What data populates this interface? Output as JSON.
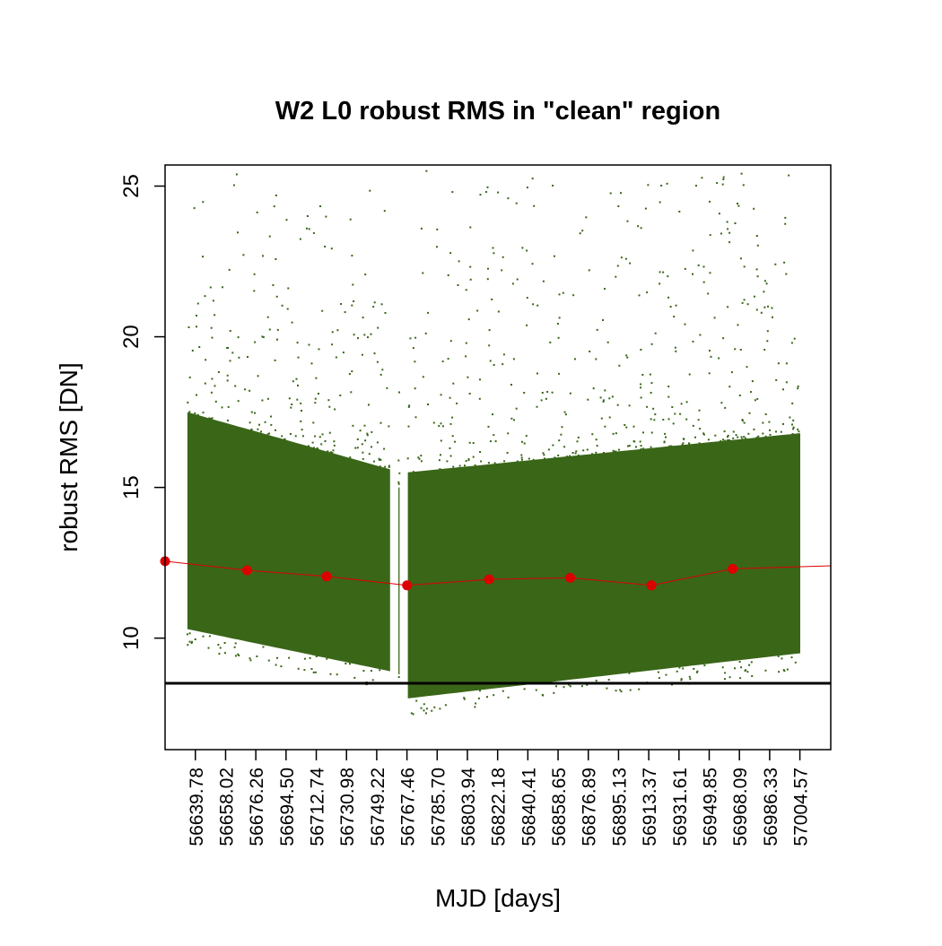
{
  "chart_data": {
    "type": "scatter",
    "title": "W2 L0 robust RMS in \"clean\" region",
    "xlabel": "MJD [days]",
    "ylabel": "robust RMS [DN]",
    "xlim": [
      56621.5,
      57023.2
    ],
    "ylim": [
      6.3,
      25.7
    ],
    "grid": false,
    "yticks": [
      10,
      15,
      20,
      25
    ],
    "xticks": [
      56639.78,
      56658.02,
      56676.26,
      56694.5,
      56712.74,
      56730.98,
      56749.22,
      56767.46,
      56785.7,
      56803.94,
      56822.18,
      56840.41,
      56858.65,
      56876.89,
      56895.13,
      56913.37,
      56931.61,
      56949.85,
      56968.09,
      56986.33,
      57004.57
    ],
    "xtick_labels": [
      "56639.78",
      "56658.02",
      "56676.26",
      "56694.50",
      "56712.74",
      "56730.98",
      "56749.22",
      "56767.46",
      "56785.70",
      "56803.94",
      "56822.18",
      "56840.41",
      "56858.65",
      "56876.89",
      "56895.13",
      "56913.37",
      "56931.61",
      "56949.85",
      "56968.09",
      "56986.33",
      "57004.57"
    ],
    "scatter_series": {
      "color": "#3a6618",
      "segments": [
        {
          "x_range": [
            56635.0,
            56757.3
          ],
          "band_low": [
            10.3,
            8.9
          ],
          "band_high": [
            17.5,
            15.6
          ]
        },
        {
          "x_range": [
            56762.3,
            56763.0
          ],
          "band_low": [
            8.8,
            8.8
          ],
          "band_high": [
            15.0,
            15.0
          ]
        },
        {
          "x_range": [
            56768.0,
            57004.8
          ],
          "band_low": [
            8.0,
            9.5
          ],
          "band_high": [
            15.5,
            16.8
          ]
        }
      ]
    },
    "trend_series": {
      "color": "#dd0000",
      "x": [
        56621.5,
        56671.0,
        56719.0,
        56767.5,
        56817.0,
        56866.0,
        56915.0,
        56964.0,
        57023.2
      ],
      "y": [
        12.55,
        12.25,
        12.05,
        11.75,
        11.95,
        12.0,
        11.75,
        12.3,
        12.4
      ]
    },
    "reference_line": {
      "y": 8.5,
      "color": "#000000"
    }
  }
}
